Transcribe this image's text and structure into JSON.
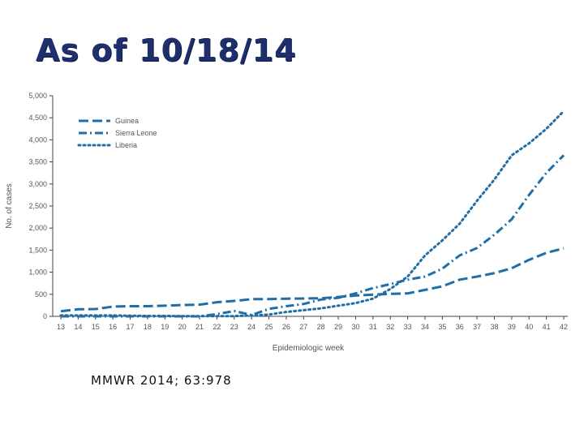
{
  "slide": {
    "title": "As of 10/18/14",
    "citation": "MMWR 2014; 63:978"
  },
  "chart_data": {
    "type": "line",
    "xlabel": "Epidemiologic week",
    "ylabel": "No. of cases",
    "x": [
      13,
      14,
      15,
      16,
      17,
      18,
      19,
      20,
      21,
      22,
      23,
      24,
      25,
      26,
      27,
      28,
      29,
      30,
      31,
      32,
      33,
      34,
      35,
      36,
      37,
      38,
      39,
      40,
      41,
      42
    ],
    "ylim": [
      0,
      5000
    ],
    "yticks": [
      0,
      500,
      1000,
      1500,
      2000,
      2500,
      3000,
      3500,
      4000,
      4500,
      5000
    ],
    "ytick_labels": [
      "0",
      "500",
      "1,000",
      "1,500",
      "2,000",
      "2,500",
      "3,000",
      "3,500",
      "4,000",
      "4,500",
      "5,000"
    ],
    "grid": false,
    "legend_position": "top-left",
    "series_color": "#1f6ea8",
    "series": [
      {
        "name": "Guinea",
        "style": "dashed",
        "values": [
          115,
          160,
          165,
          220,
          230,
          230,
          240,
          255,
          265,
          320,
          350,
          390,
          390,
          400,
          405,
          410,
          440,
          470,
          490,
          510,
          520,
          600,
          680,
          830,
          900,
          980,
          1090,
          1280,
          1440,
          1540
        ]
      },
      {
        "name": "Sierra Leone",
        "style": "dashdot",
        "values": [
          0,
          0,
          0,
          0,
          0,
          0,
          0,
          0,
          0,
          50,
          120,
          30,
          170,
          230,
          280,
          380,
          420,
          520,
          640,
          730,
          830,
          900,
          1080,
          1380,
          1550,
          1850,
          2200,
          2750,
          3250,
          3650
        ]
      },
      {
        "name": "Liberia",
        "style": "dotted",
        "values": [
          20,
          20,
          20,
          20,
          15,
          10,
          10,
          5,
          5,
          5,
          5,
          20,
          40,
          100,
          140,
          180,
          240,
          300,
          400,
          620,
          900,
          1380,
          1720,
          2100,
          2620,
          3100,
          3650,
          3920,
          4250,
          4650
        ]
      }
    ]
  }
}
